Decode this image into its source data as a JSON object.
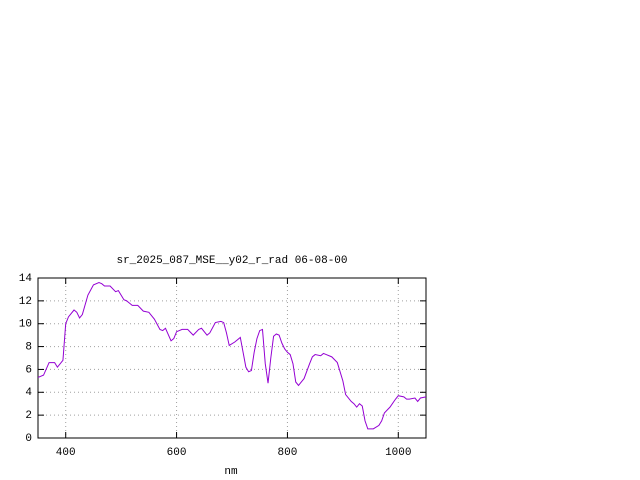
{
  "chart_data": {
    "type": "line",
    "title": "sr_2025_087_MSE__y02_r_rad 06-08-00",
    "x_label": "nm",
    "color": "#9400d3",
    "grid": true,
    "xlim": [
      350,
      1050
    ],
    "xticks": [
      400,
      600,
      800,
      1000
    ],
    "ylim": [
      0,
      14
    ],
    "yticks": [
      0,
      2,
      4,
      6,
      8,
      10,
      12,
      14
    ],
    "x": [
      350,
      360,
      370,
      380,
      385,
      395,
      400,
      405,
      415,
      420,
      425,
      430,
      440,
      450,
      460,
      465,
      470,
      480,
      490,
      495,
      505,
      510,
      520,
      530,
      540,
      550,
      560,
      570,
      575,
      580,
      590,
      595,
      600,
      610,
      620,
      630,
      640,
      645,
      655,
      660,
      670,
      680,
      685,
      690,
      695,
      705,
      715,
      720,
      725,
      730,
      735,
      740,
      745,
      750,
      755,
      760,
      765,
      770,
      775,
      780,
      785,
      790,
      795,
      800,
      805,
      810,
      815,
      820,
      830,
      840,
      845,
      850,
      860,
      865,
      870,
      880,
      890,
      900,
      905,
      915,
      920,
      925,
      930,
      935,
      940,
      945,
      955,
      965,
      970,
      975,
      985,
      995,
      1000,
      1010,
      1015,
      1020,
      1030,
      1035,
      1040,
      1050
    ],
    "values": [
      5.3,
      5.5,
      6.6,
      6.6,
      6.2,
      6.8,
      10.0,
      10.6,
      11.2,
      11.0,
      10.5,
      10.8,
      12.5,
      13.4,
      13.6,
      13.5,
      13.3,
      13.3,
      12.8,
      12.9,
      12.1,
      12.0,
      11.6,
      11.6,
      11.1,
      11.0,
      10.4,
      9.5,
      9.4,
      9.6,
      8.5,
      8.7,
      9.3,
      9.5,
      9.5,
      9.0,
      9.5,
      9.6,
      9.0,
      9.2,
      10.1,
      10.2,
      10.1,
      9.2,
      8.1,
      8.4,
      8.8,
      7.5,
      6.2,
      5.8,
      5.9,
      7.5,
      8.7,
      9.4,
      9.5,
      6.5,
      4.8,
      7.0,
      8.9,
      9.1,
      9.0,
      8.3,
      7.8,
      7.5,
      7.3,
      6.5,
      4.9,
      4.6,
      5.2,
      6.5,
      7.1,
      7.3,
      7.2,
      7.4,
      7.3,
      7.1,
      6.6,
      5.0,
      3.8,
      3.2,
      3.0,
      2.7,
      3.0,
      2.8,
      1.5,
      0.8,
      0.8,
      1.1,
      1.5,
      2.2,
      2.7,
      3.4,
      3.7,
      3.6,
      3.4,
      3.4,
      3.5,
      3.2,
      3.5,
      3.6
    ]
  }
}
